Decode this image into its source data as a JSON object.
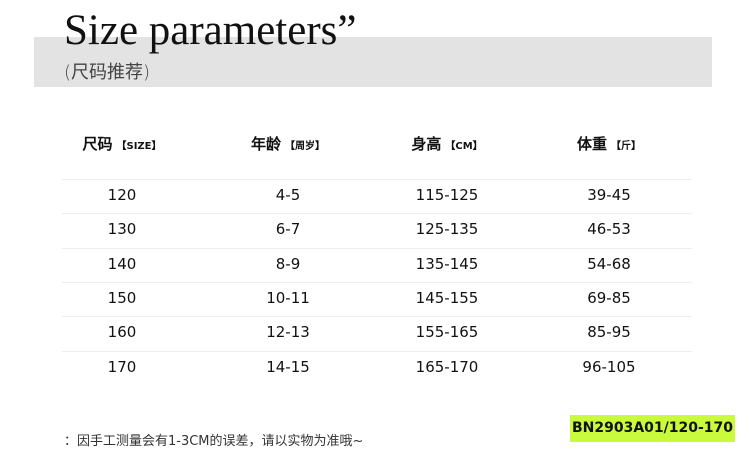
{
  "title": "Size parameters”",
  "subtitle": "(尺码推荐)",
  "headers": [
    {
      "label": "尺码",
      "unit": "【SIZE】"
    },
    {
      "label": "年龄",
      "unit": "【周岁】"
    },
    {
      "label": "身高",
      "unit": "【CM】"
    },
    {
      "label": "体重",
      "unit": "【斤】"
    }
  ],
  "rows": [
    [
      "120",
      "4-5",
      "115-125",
      "39-45"
    ],
    [
      "130",
      "6-7",
      "125-135",
      "46-53"
    ],
    [
      "140",
      "8-9",
      "135-145",
      "54-68"
    ],
    [
      "150",
      "10-11",
      "145-155",
      "69-85"
    ],
    [
      "160",
      "12-13",
      "155-165",
      "85-95"
    ],
    [
      "170",
      "14-15",
      "165-170",
      "96-105"
    ]
  ],
  "note": "：因手工测量会有1-3CM的误差，请以实物为准哦~",
  "badge": "BN2903A01/120-170",
  "badge_color": "#c9fa3c"
}
